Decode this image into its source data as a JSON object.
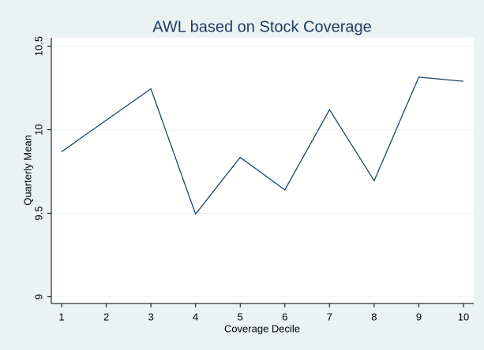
{
  "chart_data": {
    "type": "line",
    "title": "AWL based on Stock Coverage",
    "x_label": "Coverage Decile",
    "y_label": "Quarterly Mean",
    "x": [
      1,
      2,
      3,
      4,
      5,
      6,
      7,
      8,
      9,
      10
    ],
    "series": [
      {
        "name": "Quarterly Mean",
        "color": "#1a476f",
        "values": [
          9.868,
          10.057,
          10.245,
          9.495,
          9.835,
          9.64,
          10.12,
          9.695,
          10.315,
          10.29
        ]
      }
    ],
    "xlim": [
      0.77,
      10.23
    ],
    "xticks": [
      1,
      2,
      3,
      4,
      5,
      6,
      7,
      8,
      9,
      10
    ],
    "ylim": [
      8.96,
      10.55
    ],
    "yticks": [
      9,
      9.5,
      10,
      10.5
    ],
    "grid": true
  }
}
